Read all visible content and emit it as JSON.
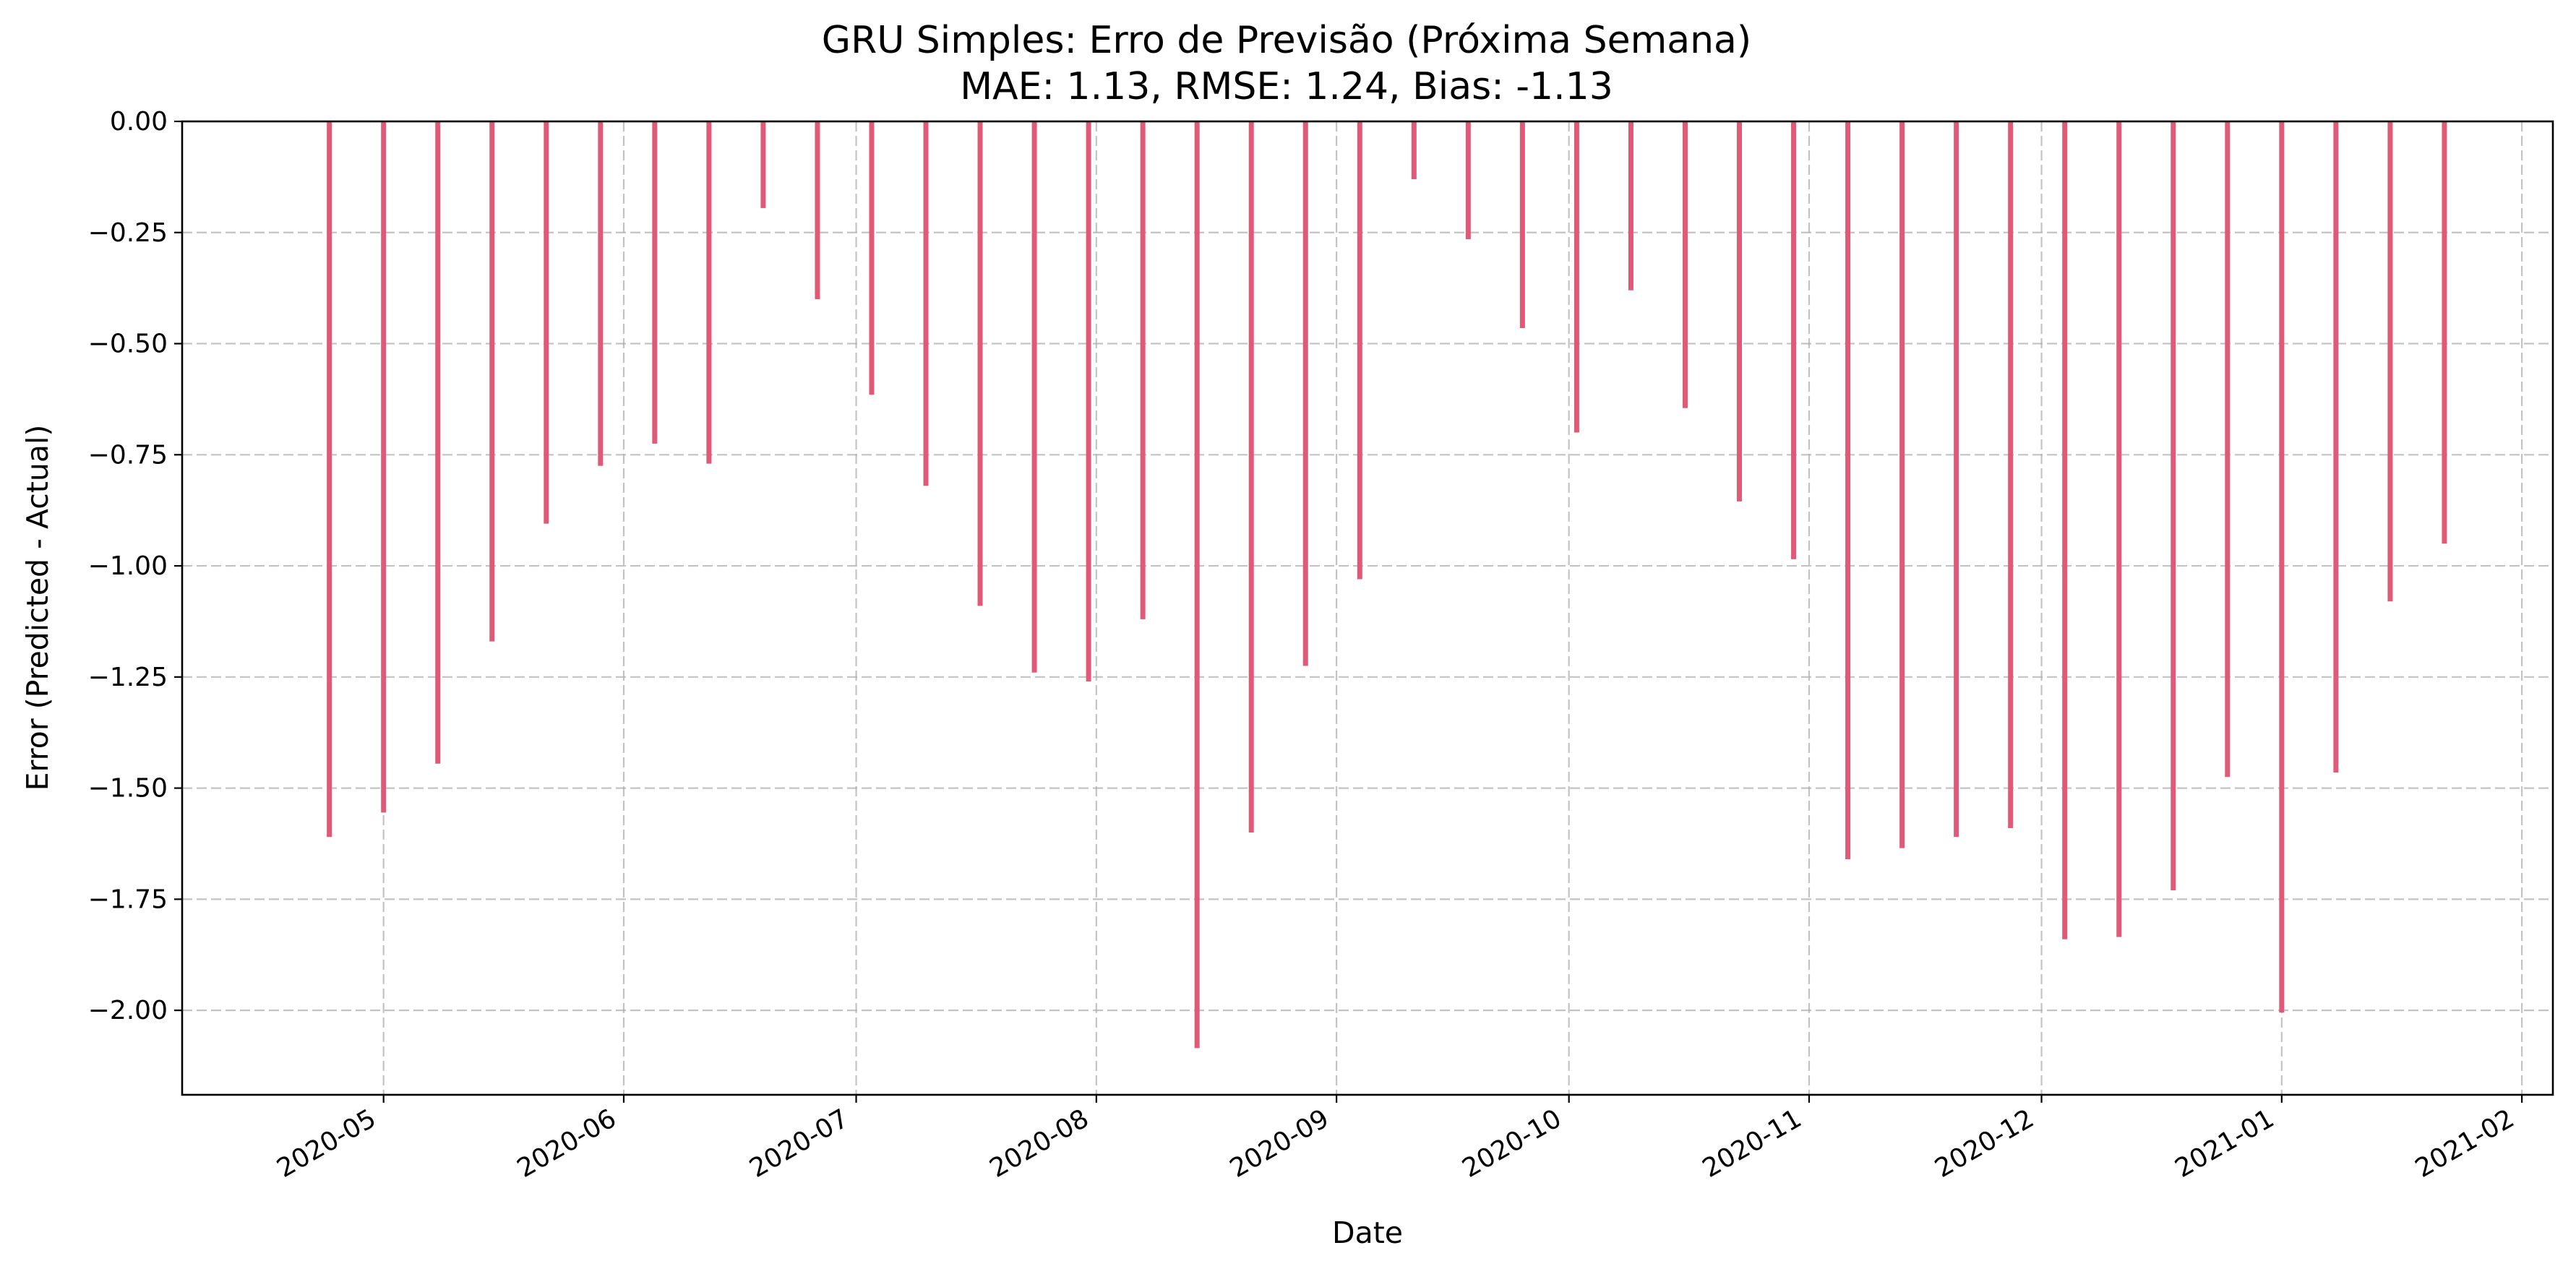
{
  "chart_data": {
    "type": "bar",
    "title": "GRU Simples: Erro de Previsão (Próxima Semana)",
    "subtitle": "MAE: 1.13, RMSE: 1.24, Bias: -1.13",
    "xlabel": "Date",
    "ylabel": "Error (Predicted - Actual)",
    "bar_color": "#e05a78",
    "grid": true,
    "xlim": [
      "2020-04-05",
      "2021-02-05"
    ],
    "ylim": [
      -2.19,
      0.0
    ],
    "y_ticks": [
      0.0,
      -0.25,
      -0.5,
      -0.75,
      -1.0,
      -1.25,
      -1.5,
      -1.75,
      -2.0
    ],
    "y_tick_labels": [
      "0.00",
      "−0.25",
      "−0.50",
      "−0.75",
      "−1.00",
      "−1.25",
      "−1.50",
      "−1.75",
      "−2.00"
    ],
    "x_ticks": [
      "2020-05-01",
      "2020-06-01",
      "2020-07-01",
      "2020-08-01",
      "2020-09-01",
      "2020-10-01",
      "2020-11-01",
      "2020-12-01",
      "2021-01-01",
      "2021-02-01"
    ],
    "x_tick_labels": [
      "2020-05",
      "2020-06",
      "2020-07",
      "2020-08",
      "2020-09",
      "2020-10",
      "2020-11",
      "2020-12",
      "2021-01",
      "2021-02"
    ],
    "x": [
      "2020-04-24",
      "2020-05-01",
      "2020-05-08",
      "2020-05-15",
      "2020-05-22",
      "2020-05-29",
      "2020-06-05",
      "2020-06-12",
      "2020-06-19",
      "2020-06-26",
      "2020-07-03",
      "2020-07-10",
      "2020-07-17",
      "2020-07-24",
      "2020-07-31",
      "2020-08-07",
      "2020-08-14",
      "2020-08-21",
      "2020-08-28",
      "2020-09-04",
      "2020-09-11",
      "2020-09-18",
      "2020-09-25",
      "2020-10-02",
      "2020-10-09",
      "2020-10-16",
      "2020-10-23",
      "2020-10-30",
      "2020-11-06",
      "2020-11-13",
      "2020-11-20",
      "2020-11-27",
      "2020-12-04",
      "2020-12-11",
      "2020-12-18",
      "2020-12-25",
      "2021-01-01",
      "2021-01-08",
      "2021-01-15",
      "2021-01-22"
    ],
    "values": [
      -1.61,
      -1.555,
      -1.445,
      -1.17,
      -0.905,
      -0.775,
      -0.725,
      -0.77,
      -0.195,
      -0.4,
      -0.615,
      -0.82,
      -1.09,
      -1.24,
      -1.26,
      -1.12,
      -2.085,
      -1.6,
      -1.225,
      -1.03,
      -0.13,
      -0.265,
      -0.465,
      -0.7,
      -0.38,
      -0.645,
      -0.855,
      -0.985,
      -1.66,
      -1.635,
      -1.61,
      -1.59,
      -1.84,
      -1.835,
      -1.73,
      -1.475,
      -2.005,
      -1.465,
      -1.08,
      -0.95
    ]
  }
}
